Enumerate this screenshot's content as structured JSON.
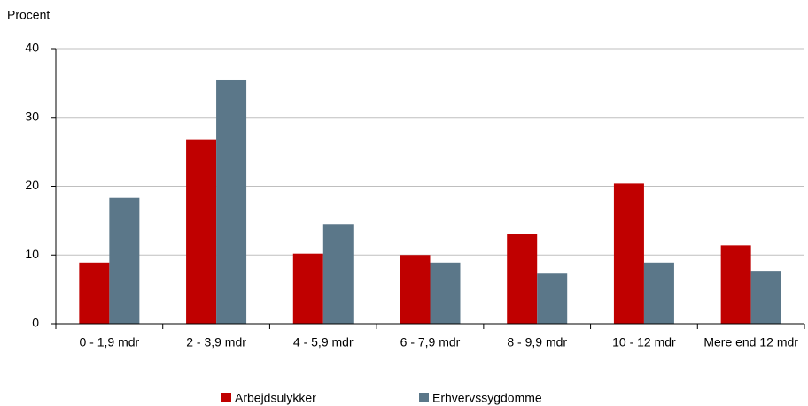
{
  "chart_data": {
    "type": "bar",
    "y_label": "Procent",
    "categories": [
      "0 - 1,9 mdr",
      "2 - 3,9 mdr",
      "4 - 5,9 mdr",
      "6 - 7,9 mdr",
      "8 - 9,9 mdr",
      "10 - 12 mdr",
      "Mere end 12 mdr"
    ],
    "series": [
      {
        "name": "Arbejdsulykker",
        "color": "#c00000",
        "values": [
          8.9,
          26.8,
          10.2,
          10.0,
          13.0,
          20.4,
          11.4
        ]
      },
      {
        "name": "Erhvervssygdomme",
        "color": "#5b7789",
        "values": [
          18.3,
          35.5,
          14.5,
          8.9,
          7.3,
          8.9,
          7.7
        ]
      }
    ],
    "ylim": [
      0,
      40
    ],
    "yticks": [
      0,
      10,
      20,
      30,
      40
    ],
    "grid": true,
    "legend": "bottom"
  }
}
